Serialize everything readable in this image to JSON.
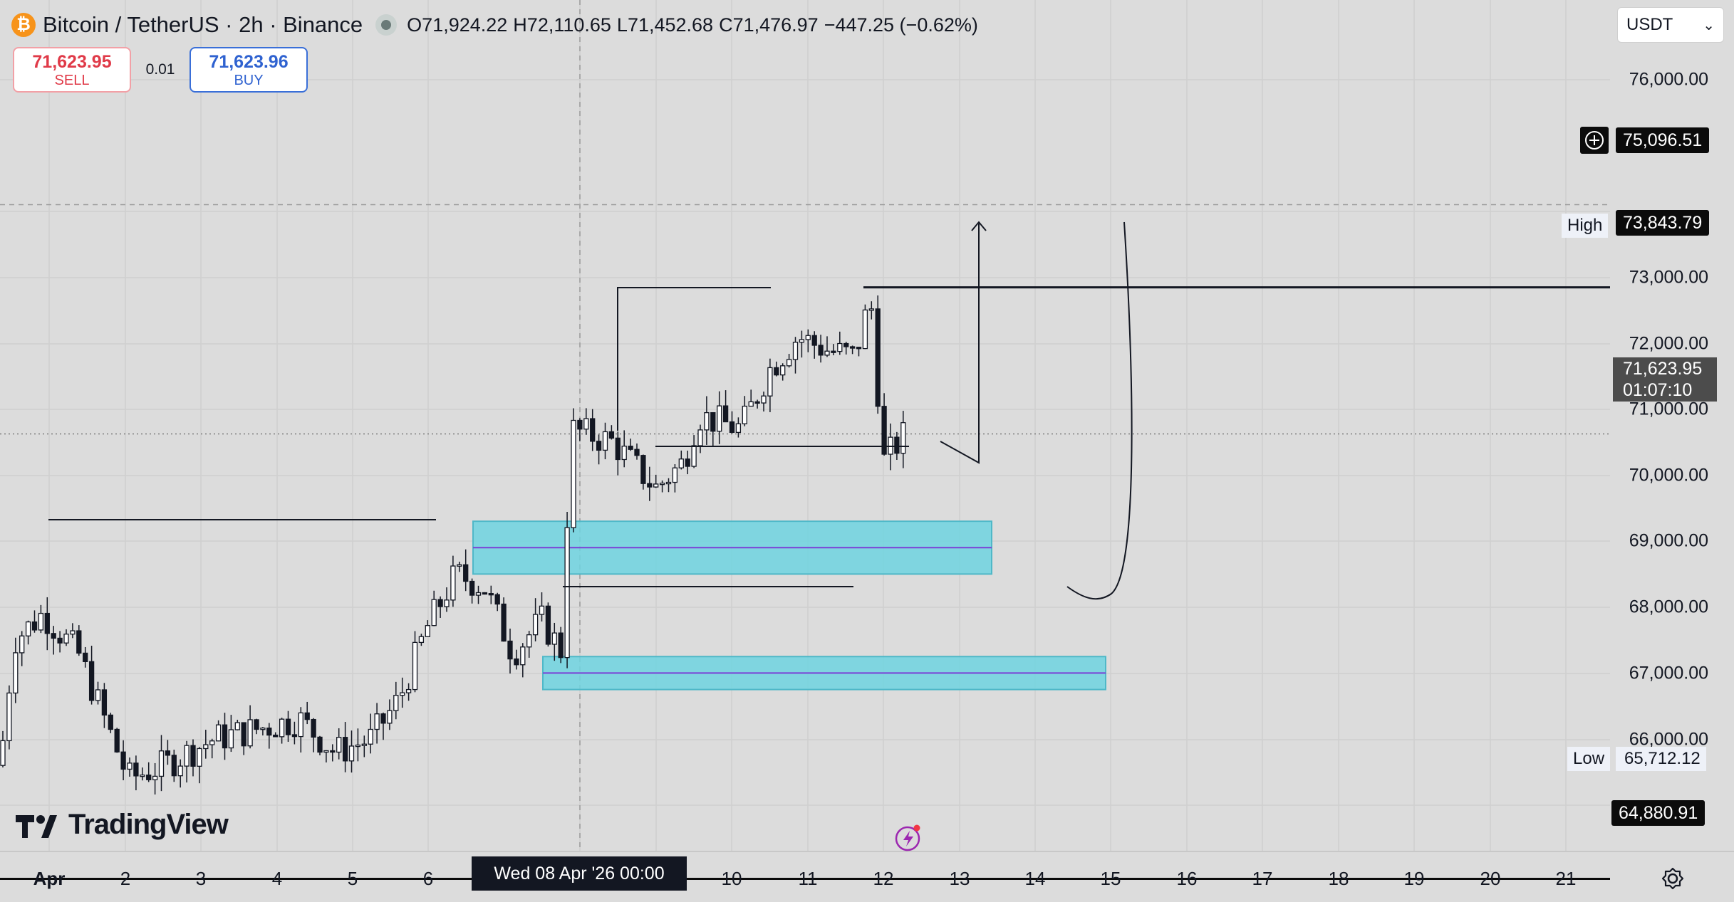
{
  "header": {
    "symbol": "Bitcoin / TetherUS · 2h · Binance",
    "logo_glyph": "₿",
    "ohlc": {
      "open_label": "O",
      "open": "71,924.22",
      "high_label": "H",
      "high": "72,110.65",
      "low_label": "L",
      "low": "71,452.68",
      "close_label": "C",
      "close": "71,476.97",
      "change": "−447.25 (−0.62%)"
    }
  },
  "trade": {
    "sell_price": "71,623.95",
    "sell_label": "SELL",
    "spread": "0.01",
    "buy_price": "71,623.96",
    "buy_label": "BUY"
  },
  "currency_select": {
    "value": "USDT"
  },
  "price_axis": {
    "ticks": [
      "76,000.00",
      "73,000.00",
      "72,000.00",
      "71,000.00",
      "70,000.00",
      "69,000.00",
      "68,000.00",
      "67,000.00",
      "66,000.00"
    ],
    "crosshair_price": "75,096.51",
    "high_tag": "High",
    "high_value": "73,843.79",
    "current_price": "71,623.95",
    "countdown": "01:07:10",
    "low_tag": "Low",
    "low_value": "65,712.12",
    "line_price": "64,880.91"
  },
  "time_axis": {
    "ticks": [
      "Apr",
      "2",
      "3",
      "4",
      "5",
      "6",
      "10",
      "11",
      "12",
      "13",
      "14",
      "15",
      "16",
      "17",
      "18",
      "19",
      "20",
      "21"
    ],
    "crosshair_label": "Wed 08 Apr '26   00:00"
  },
  "watermark": {
    "text": "TradingView"
  },
  "chart_data": {
    "type": "candlestick",
    "symbol": "Bitcoin / TetherUS",
    "interval": "2h",
    "exchange": "Binance",
    "ylim": [
      64200,
      76700
    ],
    "levels": {
      "high": 73843.79,
      "low": 65712.12,
      "current": 71623.95,
      "crosshair": 75096.51,
      "line": 64880.91
    },
    "zones": [
      {
        "from": 69500,
        "to": 70300,
        "mid": 69900
      },
      {
        "from": 67750,
        "to": 68250,
        "mid": 68000
      }
    ],
    "colors": {
      "zone_fill": "#6fd3e0",
      "zone_line": "#7b3fd6",
      "candles": "#131722"
    }
  }
}
